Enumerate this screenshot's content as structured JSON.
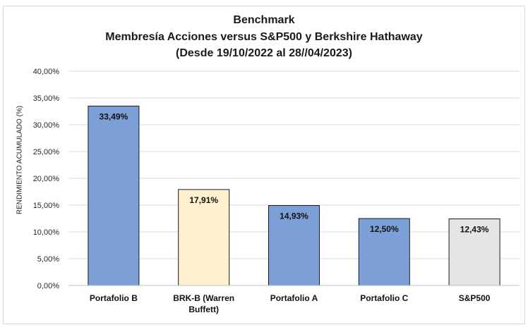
{
  "chart_data": {
    "type": "bar",
    "title_lines": [
      "Benchmark",
      "Membresía Acciones versus S&P500 y Berkshire Hathaway",
      "(Desde 19/10/2022 al 28//04/2023)"
    ],
    "xlabel": "",
    "ylabel": "RENDIMIENTO ACUMULADO (%)",
    "ylim": [
      0,
      40
    ],
    "yticks": [
      0,
      5,
      10,
      15,
      20,
      25,
      30,
      35,
      40
    ],
    "ytick_labels": [
      "0,00%",
      "5,00%",
      "10,00%",
      "15,00%",
      "20,00%",
      "25,00%",
      "30,00%",
      "35,00%",
      "40,00%"
    ],
    "grid": true,
    "categories": [
      [
        "Portafolio B"
      ],
      [
        "BRK-B (Warren",
        "Buffett)"
      ],
      [
        "Portafolio A"
      ],
      [
        "Portafolio C"
      ],
      [
        "S&P500"
      ]
    ],
    "values": [
      33.49,
      17.91,
      14.93,
      12.5,
      12.43
    ],
    "data_labels": [
      "33,49%",
      "17,91%",
      "14,93%",
      "12,50%",
      "12,43%"
    ],
    "bar_colors": [
      "#7b9fd6",
      "#fdf0cc",
      "#7b9fd6",
      "#7b9fd6",
      "#e5e5e5"
    ]
  }
}
